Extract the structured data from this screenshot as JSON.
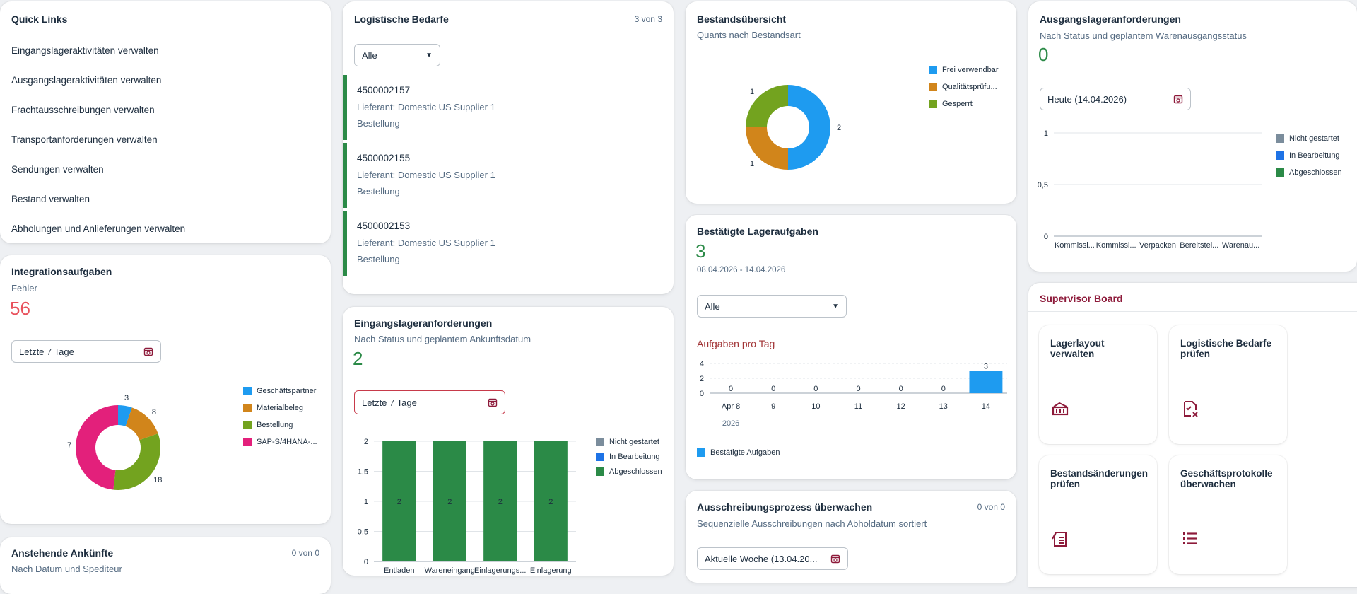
{
  "quick_links": {
    "title": "Quick Links",
    "items": [
      "Eingangslageraktivitäten verwalten",
      "Ausgangslageraktivitäten verwalten",
      "Frachtausschreibungen verwalten",
      "Transportanforderungen verwalten",
      "Sendungen verwalten",
      "Bestand verwalten",
      "Abholungen und Anlieferungen verwalten"
    ]
  },
  "integration": {
    "title": "Integrationsaufgaben",
    "subtitle": "Fehler",
    "kpi": "56",
    "filter": "Letzte 7 Tage"
  },
  "arrivals": {
    "title": "Anstehende Ankünfte",
    "counter": "0 von 0",
    "subtitle": "Nach Datum und Spediteur"
  },
  "log_needs": {
    "title": "Logistische Bedarfe",
    "counter": "3 von 3",
    "filter": "Alle",
    "items": [
      {
        "id": "4500002157",
        "supplier": "Lieferant: Domestic US Supplier 1",
        "type": "Bestellung"
      },
      {
        "id": "4500002155",
        "supplier": "Lieferant: Domestic US Supplier 1",
        "type": "Bestellung"
      },
      {
        "id": "4500002153",
        "supplier": "Lieferant: Domestic US Supplier 1",
        "type": "Bestellung"
      }
    ]
  },
  "inbound": {
    "title": "Eingangslageranforderungen",
    "subtitle": "Nach Status und geplantem Ankunftsdatum",
    "kpi": "2",
    "filter": "Letzte 7 Tage"
  },
  "stock": {
    "title": "Bestandsübersicht",
    "subtitle": "Quants nach Bestandsart"
  },
  "confirmed": {
    "title": "Bestätigte Lageraufgaben",
    "kpi": "3",
    "daterange": "08.04.2026 - 14.04.2026",
    "filter": "Alle",
    "chart_title": "Aufgaben pro Tag"
  },
  "tender": {
    "title": "Ausschreibungsprozess überwachen",
    "counter": "0 von 0",
    "subtitle": "Sequenzielle Ausschreibungen nach Abholdatum sortiert",
    "filter": "Aktuelle Woche (13.04.20..."
  },
  "outbound": {
    "title": "Ausgangslageranforderungen",
    "subtitle": "Nach Status und geplantem Warenausgangsstatus",
    "kpi": "0",
    "filter": "Heute (14.04.2026)"
  },
  "supervisor": {
    "title": "Supervisor Board",
    "tiles": [
      "Lagerlayout verwalten",
      "Logistische Bedarfe prüfen",
      "Bestandsänderungen prüfen",
      "Geschäftsprotokolle überwachen"
    ]
  },
  "colors": {
    "green": "#2b8a47",
    "blue": "#1e88e5",
    "orange": "#d1851b",
    "olive": "#73a31f",
    "magenta": "#e3207b",
    "grey": "#7b8d9c",
    "red": "#c73a4a",
    "kpi_green": "#2b8a47",
    "kpi_red": "#e8505b",
    "brand": "#8d1a3a"
  },
  "chart_data": [
    {
      "type": "pie",
      "id": "integration",
      "categories": [
        "Geschäftspartner",
        "Materialbeleg",
        "Bestellung",
        "SAP-S/4HANA-..."
      ],
      "values": [
        3,
        8,
        18,
        27
      ],
      "colors": [
        "#1e9bf0",
        "#d1851b",
        "#73a31f",
        "#e3207b"
      ]
    },
    {
      "type": "bar",
      "id": "inbound",
      "categories": [
        "Entladen",
        "Wareneingang",
        "Einlagerungs...",
        "Einlagerung"
      ],
      "series": [
        {
          "name": "Nicht gestartet",
          "values": [
            0,
            0,
            0,
            0
          ]
        },
        {
          "name": "In Bearbeitung",
          "values": [
            0,
            0,
            0,
            0
          ]
        },
        {
          "name": "Abgeschlossen",
          "values": [
            2,
            2,
            2,
            2
          ]
        }
      ],
      "y_ticks": [
        "0",
        "0,5",
        "1",
        "1,5",
        "2"
      ],
      "ylim": [
        0,
        2
      ]
    },
    {
      "type": "pie",
      "id": "stock",
      "categories": [
        "Frei verwendbar",
        "Qualitätsprüfu...",
        "Gesperrt"
      ],
      "values": [
        2,
        1,
        1
      ],
      "colors": [
        "#1e9bf0",
        "#d1851b",
        "#73a31f"
      ]
    },
    {
      "type": "bar",
      "id": "confirmed",
      "categories": [
        "Apr 8",
        "9",
        "10",
        "11",
        "12",
        "13",
        "14"
      ],
      "year_label": "2026",
      "series": [
        {
          "name": "Bestätigte Aufgaben",
          "values": [
            0,
            0,
            0,
            0,
            0,
            0,
            3
          ]
        }
      ],
      "y_ticks": [
        "0",
        "2",
        "4"
      ],
      "ylim": [
        0,
        4
      ]
    },
    {
      "type": "bar",
      "id": "outbound",
      "categories": [
        "Kommissi...",
        "Kommissi...",
        "Verpacken",
        "Bereitstel...",
        "Warenau..."
      ],
      "series": [
        {
          "name": "Nicht gestartet",
          "values": [
            0,
            0,
            0,
            0,
            0
          ]
        },
        {
          "name": "In Bearbeitung",
          "values": [
            0,
            0,
            0,
            0,
            0
          ]
        },
        {
          "name": "Abgeschlossen",
          "values": [
            0,
            0,
            0,
            0,
            0
          ]
        }
      ],
      "y_ticks": [
        "0",
        "0,5",
        "1"
      ],
      "ylim": [
        0,
        1
      ]
    }
  ]
}
